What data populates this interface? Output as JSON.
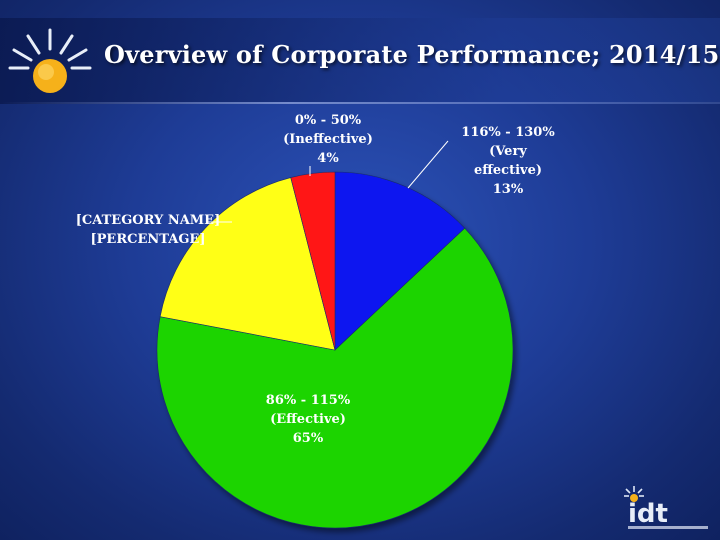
{
  "slide": {
    "title": "Overview of Corporate Performance; 2014/15"
  },
  "colors": {
    "very_effective": "#0a14f0",
    "effective": "#1ad400",
    "category": "#ffff14",
    "ineffective": "#ff1414"
  },
  "icons": [
    "sun-icon",
    "idt-logo"
  ],
  "chart_data": {
    "type": "pie",
    "title": "Overview of Corporate Performance; 2014/15",
    "slices": [
      {
        "label_lines": [
          "116% - 130%",
          "(Very",
          "effective)"
        ],
        "value": 13,
        "percent_label": "13%",
        "color": "#0a14f0"
      },
      {
        "label_lines": [
          "86% - 115%",
          "(Effective)"
        ],
        "value": 65,
        "percent_label": "65%",
        "color": "#1ad400"
      },
      {
        "label_lines": [
          "[CATEGORY NAME]"
        ],
        "value": 18,
        "percent_label": "[PERCENTAGE]",
        "color": "#ffff14"
      },
      {
        "label_lines": [
          "0% - 50%",
          "(Ineffective)"
        ],
        "value": 4,
        "percent_label": "4%",
        "color": "#ff1414"
      }
    ],
    "legend": "none"
  }
}
